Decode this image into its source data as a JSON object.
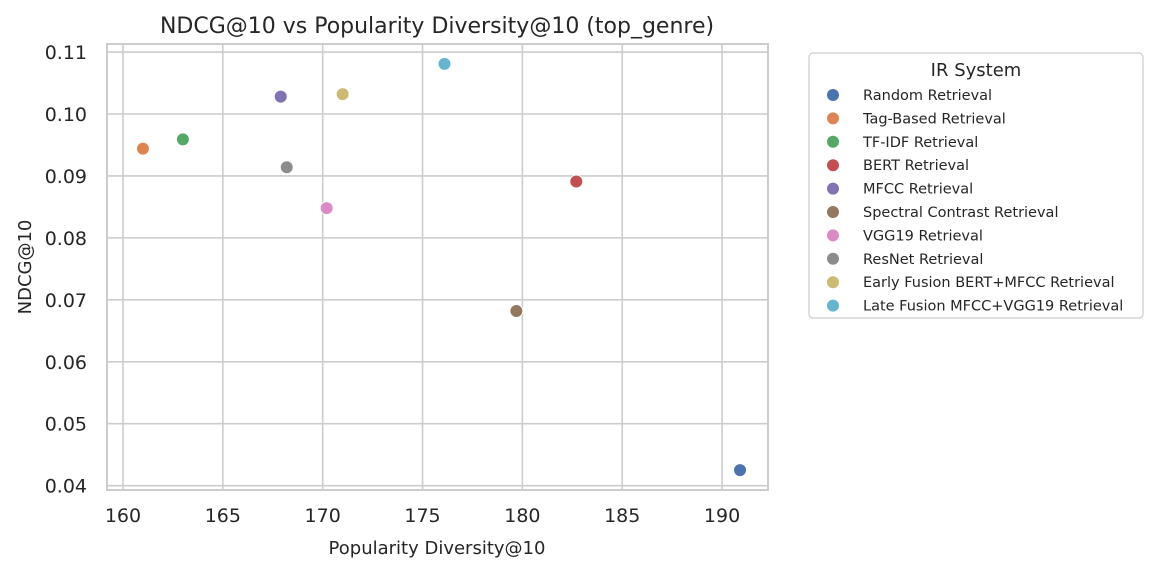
{
  "chart_data": {
    "type": "scatter",
    "title": "NDCG@10 vs Popularity Diversity@10 (top_genre)",
    "xlabel": "Popularity Diversity@10",
    "ylabel": "NDCG@10",
    "xlim": [
      159.2,
      192.3
    ],
    "ylim": [
      0.0393,
      0.1113
    ],
    "xticks": [
      160,
      165,
      170,
      175,
      180,
      185,
      190
    ],
    "yticks": [
      0.04,
      0.05,
      0.06,
      0.07,
      0.08,
      0.09,
      0.1,
      0.11
    ],
    "xtick_labels": [
      "160",
      "165",
      "170",
      "175",
      "180",
      "185",
      "190"
    ],
    "ytick_labels": [
      "0.04",
      "0.05",
      "0.06",
      "0.07",
      "0.08",
      "0.09",
      "0.10",
      "0.11"
    ],
    "grid": true,
    "legend_title": "IR System",
    "legend_position": "outside-right",
    "series": [
      {
        "name": "Random Retrieval",
        "color": "#4c72b0",
        "x": 190.9,
        "y": 0.0425
      },
      {
        "name": "Tag-Based Retrieval",
        "color": "#dd8452",
        "x": 161.0,
        "y": 0.0944
      },
      {
        "name": "TF-IDF Retrieval",
        "color": "#55a868",
        "x": 163.0,
        "y": 0.0959
      },
      {
        "name": "BERT Retrieval",
        "color": "#c44e52",
        "x": 182.7,
        "y": 0.0891
      },
      {
        "name": "MFCC Retrieval",
        "color": "#8172b3",
        "x": 167.9,
        "y": 0.1028
      },
      {
        "name": "Spectral Contrast Retrieval",
        "color": "#937860",
        "x": 179.7,
        "y": 0.0682
      },
      {
        "name": "VGG19 Retrieval",
        "color": "#da8bc3",
        "x": 170.2,
        "y": 0.0848
      },
      {
        "name": "ResNet Retrieval",
        "color": "#8c8c8c",
        "x": 168.2,
        "y": 0.0914
      },
      {
        "name": "Early Fusion BERT+MFCC Retrieval",
        "color": "#ccb974",
        "x": 171.0,
        "y": 0.1032
      },
      {
        "name": "Late Fusion MFCC+VGG19 Retrieval",
        "color": "#64b5cd",
        "x": 176.1,
        "y": 0.1081
      }
    ]
  }
}
